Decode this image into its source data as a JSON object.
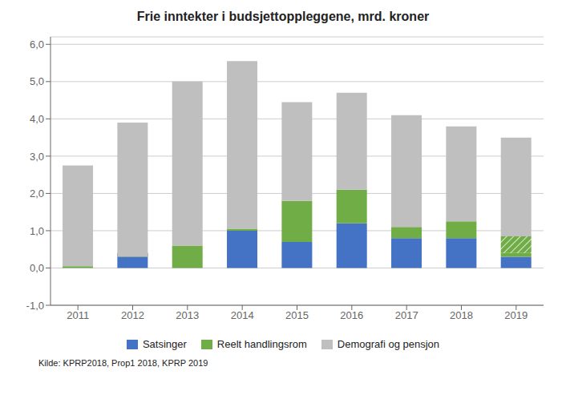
{
  "chart_data": {
    "type": "bar",
    "title": "Frie inntekter i budsjettoppleggene, mrd. kroner",
    "categories": [
      "2011",
      "2012",
      "2013",
      "2014",
      "2015",
      "2016",
      "2017",
      "2018",
      "2019"
    ],
    "series": [
      {
        "name": "Satsinger",
        "color": "#4472C4",
        "values": [
          0.0,
          0.4,
          0.0,
          1.0,
          0.7,
          1.2,
          0.8,
          0.8,
          0.3
        ]
      },
      {
        "name": "Reelt handlingsrom",
        "color": "#70AD47",
        "values": [
          0.05,
          -0.1,
          0.6,
          0.05,
          1.1,
          0.9,
          0.3,
          0.45,
          0.1
        ],
        "hatched_values": [
          0.0,
          0.0,
          0.0,
          0.0,
          0.0,
          0.0,
          0.0,
          0.0,
          0.45
        ]
      },
      {
        "name": "Demografi og pensjon",
        "color": "#BFBFBF",
        "values": [
          2.7,
          3.6,
          4.4,
          4.5,
          2.65,
          2.6,
          3.0,
          2.55,
          2.65
        ]
      }
    ],
    "stacked": true,
    "ylim": [
      -1.0,
      6.2
    ],
    "yticks": [
      {
        "value": -1.0,
        "label": "-1,0"
      },
      {
        "value": 0.0,
        "label": "0,0"
      },
      {
        "value": 1.0,
        "label": "1,0"
      },
      {
        "value": 2.0,
        "label": "2,0"
      },
      {
        "value": 3.0,
        "label": "3,0"
      },
      {
        "value": 4.0,
        "label": "4,0"
      },
      {
        "value": 5.0,
        "label": "5,0"
      },
      {
        "value": 6.0,
        "label": "6,0"
      }
    ],
    "grid": true,
    "source": "Kilde: KPRP2018, Prop1 2018, KPRP 2019"
  }
}
